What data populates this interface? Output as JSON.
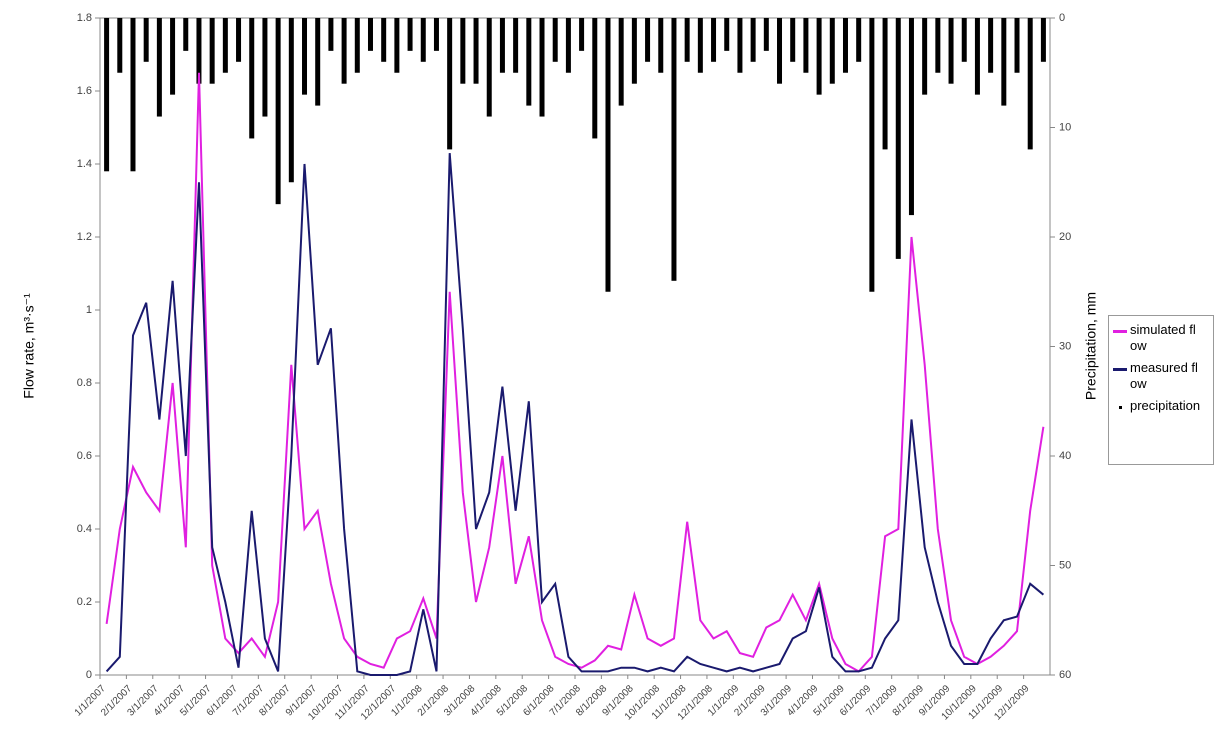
{
  "chart_data": {
    "type": "line",
    "ylabel": "Flow rate, m³·s⁻¹",
    "y2label": "Precipitation, mm",
    "categories": [
      "1/1/2007",
      null,
      "2/1/2007",
      null,
      "3/1/2007",
      null,
      "4/1/2007",
      null,
      "5/1/2007",
      null,
      "6/1/2007",
      null,
      "7/1/2007",
      null,
      "8/1/2007",
      null,
      "9/1/2007",
      null,
      "10/1/2007",
      null,
      "11/1/2007",
      null,
      "12/1/2007",
      null,
      "1/1/2008",
      null,
      "2/1/2008",
      null,
      "3/1/2008",
      null,
      "4/1/2008",
      null,
      "5/1/2008",
      null,
      "6/1/2008",
      null,
      "7/1/2008",
      null,
      "8/1/2008",
      null,
      "9/1/2008",
      null,
      "10/1/2008",
      null,
      "11/1/2008",
      null,
      "12/1/2008",
      null,
      "1/1/2009",
      null,
      "2/1/2009",
      null,
      "3/1/2009",
      null,
      "4/1/2009",
      null,
      "5/1/2009",
      null,
      "6/1/2009",
      null,
      "7/1/2009",
      null,
      "8/1/2009",
      null,
      "9/1/2009",
      null,
      "10/1/2009",
      null,
      "11/1/2009",
      null,
      "12/1/2009",
      null
    ],
    "series": [
      {
        "name": "precipitation",
        "color": "#000000",
        "axis": "y2",
        "kind": "bar",
        "values": [
          14,
          5,
          14,
          4,
          9,
          7,
          3,
          6,
          6,
          5,
          4,
          11,
          9,
          17,
          15,
          7,
          8,
          3,
          6,
          5,
          3,
          4,
          5,
          3,
          4,
          3,
          12,
          6,
          6,
          9,
          5,
          5,
          8,
          9,
          4,
          5,
          3,
          11,
          25,
          8,
          6,
          4,
          5,
          24,
          4,
          5,
          4,
          3,
          5,
          4,
          3,
          6,
          4,
          5,
          7,
          6,
          5,
          4,
          25,
          12,
          22,
          18,
          7,
          5,
          6,
          4,
          7,
          5,
          8,
          5,
          12,
          4
        ]
      },
      {
        "name": "simulated flow",
        "color": "#e020e0",
        "kind": "line",
        "values": [
          0.14,
          0.4,
          0.57,
          0.5,
          0.45,
          0.8,
          0.35,
          1.65,
          0.3,
          0.1,
          0.06,
          0.1,
          0.05,
          0.2,
          0.85,
          0.4,
          0.45,
          0.25,
          0.1,
          0.05,
          0.03,
          0.02,
          0.1,
          0.12,
          0.21,
          0.1,
          1.05,
          0.5,
          0.2,
          0.35,
          0.6,
          0.25,
          0.38,
          0.15,
          0.05,
          0.03,
          0.02,
          0.04,
          0.08,
          0.07,
          0.22,
          0.1,
          0.08,
          0.1,
          0.42,
          0.15,
          0.1,
          0.12,
          0.06,
          0.05,
          0.13,
          0.15,
          0.22,
          0.15,
          0.25,
          0.1,
          0.03,
          0.01,
          0.05,
          0.38,
          0.4,
          1.2,
          0.85,
          0.4,
          0.15,
          0.05,
          0.03,
          0.05,
          0.08,
          0.12,
          0.45,
          0.68
        ]
      },
      {
        "name": "measured flow",
        "color": "#1a1a6e",
        "kind": "line",
        "values": [
          0.01,
          0.05,
          0.93,
          1.02,
          0.7,
          1.08,
          0.6,
          1.35,
          0.35,
          0.2,
          0.02,
          0.45,
          0.1,
          0.01,
          0.6,
          1.4,
          0.85,
          0.95,
          0.4,
          0.01,
          0,
          0,
          0,
          0.01,
          0.18,
          0.01,
          1.43,
          0.95,
          0.4,
          0.5,
          0.79,
          0.45,
          0.75,
          0.2,
          0.25,
          0.05,
          0.01,
          0.01,
          0.01,
          0.02,
          0.02,
          0.01,
          0.02,
          0.01,
          0.05,
          0.03,
          0.02,
          0.01,
          0.02,
          0.01,
          0.02,
          0.03,
          0.1,
          0.12,
          0.24,
          0.05,
          0.01,
          0.01,
          0.02,
          0.1,
          0.15,
          0.7,
          0.35,
          0.2,
          0.08,
          0.03,
          0.03,
          0.1,
          0.15,
          0.16,
          0.25,
          0.22
        ]
      }
    ],
    "ylim": [
      0,
      1.8
    ],
    "yticks": [
      0,
      0.2,
      0.4,
      0.6,
      0.8,
      1,
      1.2,
      1.4,
      1.6,
      1.8
    ],
    "y2lim": [
      0,
      60
    ],
    "y2ticks": [
      0,
      10,
      20,
      30,
      40,
      50,
      60
    ],
    "y2_inverted": true,
    "grid": false,
    "legend": "right"
  }
}
